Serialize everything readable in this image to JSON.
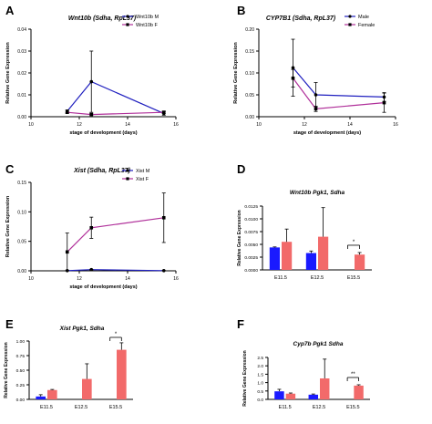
{
  "colors": {
    "blue": "#1f1fbf",
    "magenta": "#b0309a",
    "bar_blue": "#1a1aff",
    "bar_red": "#f26a6a",
    "axis": "#000000"
  },
  "panels": [
    {
      "letter": "A"
    },
    {
      "letter": "B"
    },
    {
      "letter": "C"
    },
    {
      "letter": "D"
    },
    {
      "letter": "E"
    },
    {
      "letter": "F"
    }
  ],
  "chart_data": [
    {
      "type": "line",
      "title": "Wnt10b (Sdha, RpL37)",
      "xlabel": "stage of development (days)",
      "ylabel": "Relative Gene Expression",
      "xlim": [
        10,
        16
      ],
      "ylim": [
        0,
        0.04
      ],
      "xticks": [
        "10",
        "12",
        "14",
        "16"
      ],
      "yticks": [
        "0.00",
        "0.01",
        "0.02",
        "0.03",
        "0.04"
      ],
      "legend_position": "top-right",
      "series": [
        {
          "name": "Wnt10b M",
          "color": "blue",
          "x": [
            11.5,
            12.5,
            15.5
          ],
          "y": [
            0.0025,
            0.016,
            0.0015
          ],
          "err": [
            0.0006,
            0.014,
            0.0008
          ]
        },
        {
          "name": "Wnt10b F",
          "color": "magenta",
          "x": [
            11.5,
            12.5,
            15.5
          ],
          "y": [
            0.002,
            0.001,
            0.002
          ],
          "err": [
            0.0005,
            0.0004,
            0.0006
          ]
        }
      ]
    },
    {
      "type": "line",
      "title": "CYP7B1  (Sdha, RpL37)",
      "xlabel": "stage of development (days)",
      "ylabel": "Relative Gene Expression",
      "xlim": [
        10,
        16
      ],
      "ylim": [
        0,
        0.2
      ],
      "xticks": [
        "10",
        "12",
        "14",
        "16"
      ],
      "yticks": [
        "0.00",
        "0.05",
        "0.10",
        "0.15",
        "0.20"
      ],
      "legend_position": "top-right",
      "series": [
        {
          "name": "Male",
          "color": "blue",
          "x": [
            11.5,
            12.5,
            15.5
          ],
          "y": [
            0.112,
            0.05,
            0.045
          ],
          "err": [
            0.065,
            0.028,
            0.01
          ]
        },
        {
          "name": "Female",
          "color": "magenta",
          "x": [
            11.5,
            12.5,
            15.5
          ],
          "y": [
            0.088,
            0.018,
            0.032
          ],
          "err": [
            0.02,
            0.006,
            0.022
          ]
        }
      ]
    },
    {
      "type": "line",
      "title": "Xist (Sdha, RpL37)",
      "xlabel": "stage of development (days)",
      "ylabel": "Relative Gene Expression",
      "xlim": [
        10,
        16
      ],
      "ylim": [
        0,
        0.15
      ],
      "xticks": [
        "10",
        "12",
        "14",
        "16"
      ],
      "yticks": [
        "0.00",
        "0.05",
        "0.10",
        "0.15"
      ],
      "legend_position": "top-right",
      "series": [
        {
          "name": "Xist M",
          "color": "blue",
          "x": [
            11.5,
            12.5,
            15.5
          ],
          "y": [
            0.0003,
            0.002,
            0.0003
          ],
          "err": [
            0.0002,
            0.0005,
            0.0002
          ]
        },
        {
          "name": "Xist F",
          "color": "magenta",
          "x": [
            11.5,
            12.5,
            15.5
          ],
          "y": [
            0.032,
            0.073,
            0.09
          ],
          "err": [
            0.032,
            0.018,
            0.042
          ]
        }
      ]
    },
    {
      "type": "bar",
      "title": "Wnt10b Pgk1, Sdha",
      "ylabel": "Relative Gene Expression",
      "ylim": [
        0,
        0.0125
      ],
      "yticks": [
        "0.0000",
        "0.0025",
        "0.0050",
        "0.0075",
        "0.0100",
        "0.0125"
      ],
      "categories": [
        "E11.5",
        "E12.5",
        "E15.5"
      ],
      "series": [
        {
          "color": "bar_blue",
          "values": [
            0.0044,
            0.0033,
            null
          ],
          "err": [
            0.0001,
            0.0004,
            null
          ]
        },
        {
          "color": "bar_red",
          "values": [
            0.0055,
            0.0065,
            0.003
          ],
          "err": [
            0.0025,
            0.0057,
            0.0004
          ]
        }
      ],
      "annotations": [
        {
          "text": "*",
          "category": 2
        }
      ]
    },
    {
      "type": "bar",
      "title": "Xist Pgk1, Sdha",
      "ylabel": "Relative Gene Expression",
      "ylim": [
        0,
        1.0
      ],
      "yticks": [
        "0.00",
        "0.25",
        "0.50",
        "0.75",
        "1.00"
      ],
      "categories": [
        "E11.5",
        "E12.5",
        "E15.5"
      ],
      "series": [
        {
          "color": "bar_blue",
          "values": [
            0.05,
            null,
            null
          ],
          "err": [
            0.03,
            null,
            null
          ]
        },
        {
          "color": "bar_red",
          "values": [
            0.16,
            0.35,
            0.85
          ],
          "err": [
            0.01,
            0.26,
            0.12
          ]
        }
      ],
      "annotations": [
        {
          "text": "*",
          "category": 2
        }
      ]
    },
    {
      "type": "bar",
      "title": "Cyp7b Pgk1 Sdha",
      "ylabel": "Relative Gene Expression",
      "ylim": [
        0,
        2.5
      ],
      "yticks": [
        "0.0",
        "0.5",
        "1.0",
        "1.5",
        "2.0",
        "2.5"
      ],
      "categories": [
        "E11.5",
        "E12.5",
        "E15.5"
      ],
      "series": [
        {
          "color": "bar_blue",
          "values": [
            0.48,
            0.28,
            null
          ],
          "err": [
            0.12,
            0.04,
            null
          ]
        },
        {
          "color": "bar_red",
          "values": [
            0.34,
            1.25,
            0.82
          ],
          "err": [
            0.04,
            1.15,
            0.05
          ]
        }
      ],
      "annotations": [
        {
          "text": "**",
          "category": 2
        }
      ]
    }
  ]
}
